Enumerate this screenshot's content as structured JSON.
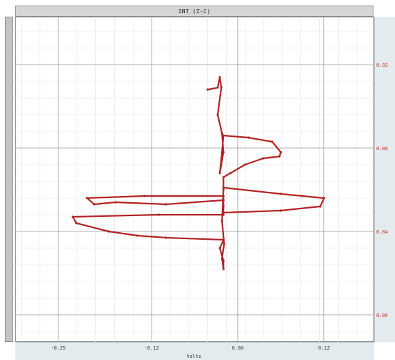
{
  "window": {
    "title": "INT (Z-C)"
  },
  "colors": {
    "trace": "#b22222",
    "major_grid": "#9a9a9a",
    "minor_grid": "#e2e2e2",
    "ytick": "#c0392b",
    "panel": "#e3ebee"
  },
  "chart_data": {
    "type": "line",
    "title": "INT (Z-C)",
    "xlabel": "Volts",
    "ylabel": "",
    "xlim": [
      -0.31,
      0.19
    ],
    "ylim": [
      0.787,
      0.943
    ],
    "grid": true,
    "x_ticks": [
      -0.25,
      -0.12,
      0.0,
      0.12
    ],
    "x_tick_labels": [
      "-0.25",
      "-0.12",
      "0.00",
      "0.12"
    ],
    "y_ticks": [
      0.8,
      0.84,
      0.88,
      0.92
    ],
    "y_tick_labels": [
      "0.80",
      "0.84",
      "0.88",
      "0.92"
    ],
    "series": [
      {
        "x": [
          -0.042,
          -0.028,
          -0.025,
          -0.023,
          -0.028,
          -0.022,
          -0.02,
          -0.025,
          -0.022,
          -0.02,
          0.015,
          0.048,
          0.06,
          0.058,
          0.035,
          0.01,
          -0.01,
          -0.02,
          -0.02,
          0.06,
          0.09,
          0.12,
          0.115,
          0.06,
          -0.02,
          -0.02,
          -0.13,
          -0.21,
          -0.2,
          -0.17,
          -0.1,
          -0.02,
          -0.02,
          -0.02,
          -0.11,
          -0.23,
          -0.225,
          -0.18,
          -0.14,
          -0.1,
          -0.02,
          -0.025,
          -0.02,
          -0.02,
          -0.022,
          -0.019,
          -0.022,
          -0.02
        ],
        "y": [
          0.908,
          0.909,
          0.914,
          0.909,
          0.896,
          0.887,
          0.878,
          0.868,
          0.878,
          0.886,
          0.885,
          0.883,
          0.878,
          0.876,
          0.875,
          0.872,
          0.868,
          0.866,
          0.861,
          0.858,
          0.857,
          0.856,
          0.852,
          0.85,
          0.849,
          0.857,
          0.857,
          0.856,
          0.853,
          0.854,
          0.853,
          0.855,
          0.852,
          0.848,
          0.848,
          0.847,
          0.844,
          0.84,
          0.838,
          0.837,
          0.836,
          0.832,
          0.826,
          0.822,
          0.827,
          0.834,
          0.845,
          0.86
        ]
      }
    ]
  }
}
